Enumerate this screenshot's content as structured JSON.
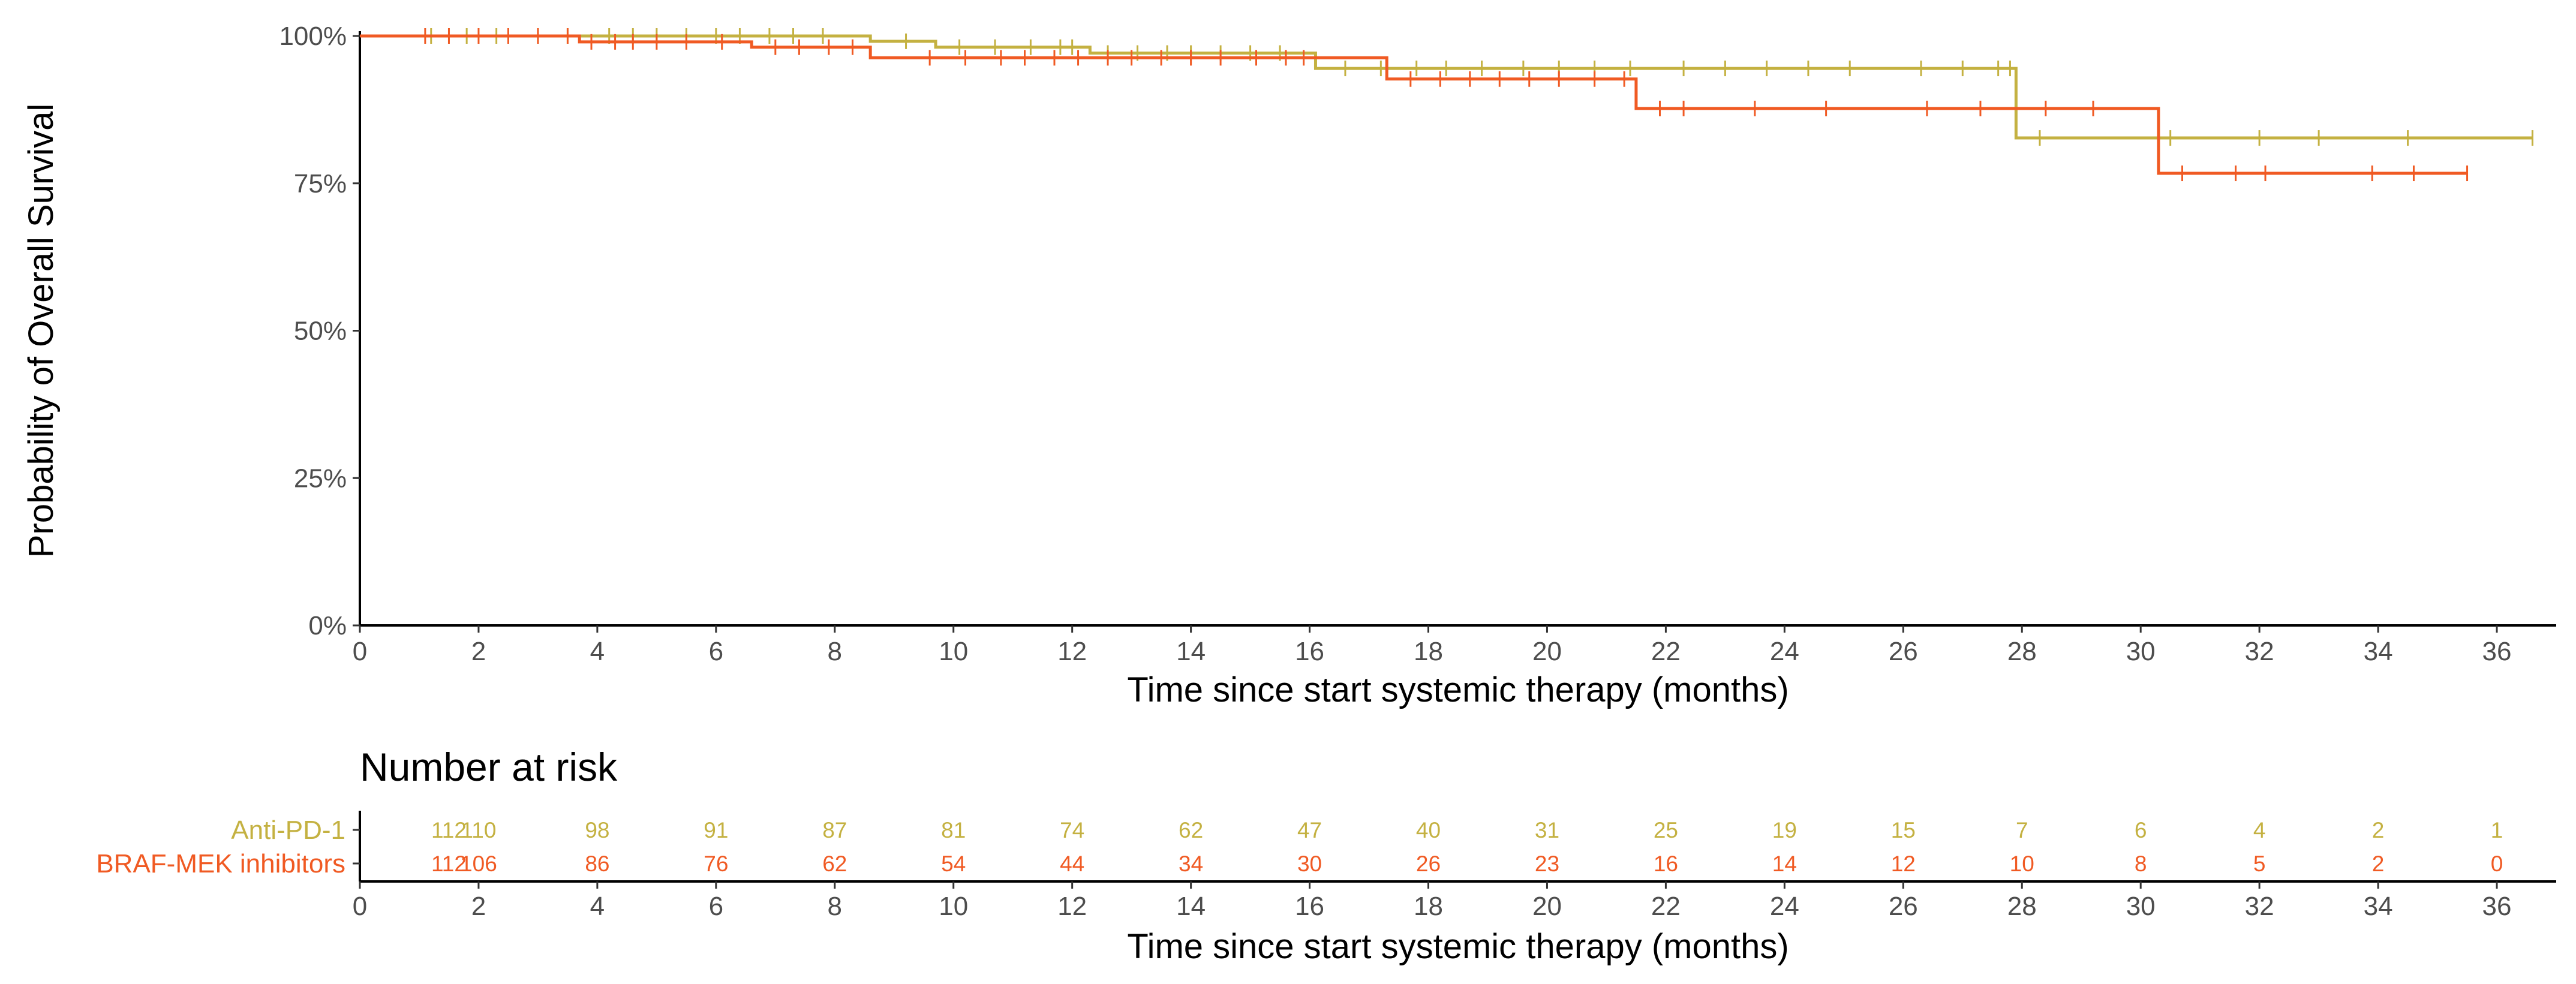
{
  "chart_data": {
    "type": "line",
    "subtype": "kaplan-meier",
    "ylabel": "Probability of Overall Survival",
    "xlabel": "Time since start systemic therapy (months)",
    "xlim": [
      0,
      37
    ],
    "ylim": [
      0,
      1
    ],
    "x_ticks": [
      0,
      2,
      4,
      6,
      8,
      10,
      12,
      14,
      16,
      18,
      20,
      22,
      24,
      26,
      28,
      30,
      32,
      34,
      36
    ],
    "y_ticks": [
      {
        "value": 0,
        "label": "0%"
      },
      {
        "value": 0.25,
        "label": "25%"
      },
      {
        "value": 0.5,
        "label": "50%"
      },
      {
        "value": 0.75,
        "label": "75%"
      },
      {
        "value": 1.0,
        "label": "100%"
      }
    ],
    "series": [
      {
        "name": "Anti-PD-1",
        "color": "#c4b141",
        "steps": [
          [
            0,
            1.0
          ],
          [
            8.6,
            0.991
          ],
          [
            9.7,
            0.981
          ],
          [
            12.3,
            0.971
          ],
          [
            16.1,
            0.945
          ],
          [
            27.9,
            0.827
          ],
          [
            36.6,
            0.827
          ]
        ],
        "censor": [
          1.2,
          1.8,
          2.3,
          3.0,
          3.5,
          4.2,
          4.6,
          5.0,
          5.5,
          6.0,
          6.4,
          6.9,
          7.3,
          7.8,
          9.2,
          10.1,
          10.7,
          11.3,
          11.8,
          12.0,
          12.6,
          13.1,
          13.6,
          14.0,
          14.5,
          15.0,
          15.5,
          16.6,
          17.2,
          17.8,
          18.3,
          18.9,
          19.6,
          20.2,
          20.8,
          21.4,
          22.3,
          23.0,
          23.7,
          24.4,
          25.1,
          26.3,
          27.0,
          27.6,
          27.8,
          28.3,
          30.5,
          32.0,
          33.0,
          34.5,
          36.6
        ]
      },
      {
        "name": "BRAF-MEK inhibitors",
        "color": "#f05a23",
        "steps": [
          [
            0,
            1.0
          ],
          [
            3.7,
            0.99
          ],
          [
            6.6,
            0.981
          ],
          [
            8.6,
            0.963
          ],
          [
            17.3,
            0.927
          ],
          [
            21.5,
            0.877
          ],
          [
            30.3,
            0.767
          ],
          [
            35.5,
            0.767
          ]
        ],
        "censor": [
          1.1,
          1.5,
          2.0,
          2.5,
          3.0,
          3.5,
          3.9,
          4.3,
          4.6,
          5.0,
          5.5,
          6.1,
          7.0,
          7.4,
          7.9,
          8.3,
          9.6,
          10.2,
          10.8,
          11.2,
          11.7,
          12.1,
          12.6,
          13.0,
          13.5,
          14.0,
          14.5,
          15.1,
          15.6,
          15.9,
          17.7,
          18.2,
          18.7,
          19.2,
          19.7,
          20.2,
          20.8,
          21.3,
          21.9,
          22.3,
          23.5,
          24.7,
          26.4,
          27.3,
          28.4,
          29.2,
          30.7,
          31.6,
          32.1,
          33.9,
          34.6,
          35.5
        ]
      }
    ],
    "risk_table": {
      "title": "Number at risk",
      "times": [
        1.5,
        2,
        4,
        6,
        8,
        10,
        12,
        14,
        16,
        18,
        20,
        22,
        24,
        26,
        28,
        30,
        32,
        34,
        36
      ],
      "rows": [
        {
          "name": "Anti-PD-1",
          "color": "#c4b141",
          "counts": [
            "112",
            "110",
            "98",
            "91",
            "87",
            "81",
            "74",
            "62",
            "47",
            "40",
            "31",
            "25",
            "19",
            "15",
            "7",
            "6",
            "4",
            "2",
            "1"
          ]
        },
        {
          "name": "BRAF-MEK inhibitors",
          "color": "#f05a23",
          "counts": [
            "112",
            "106",
            "86",
            "76",
            "62",
            "54",
            "44",
            "34",
            "30",
            "26",
            "23",
            "16",
            "14",
            "12",
            "10",
            "8",
            "5",
            "2",
            "0"
          ]
        }
      ],
      "xlabel": "Time since start systemic therapy (months)"
    }
  }
}
